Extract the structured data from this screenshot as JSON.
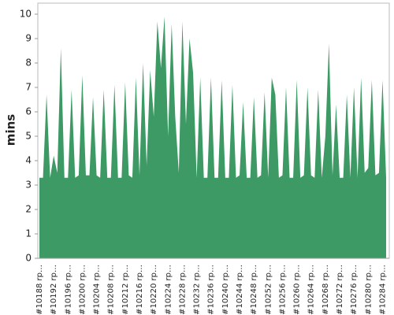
{
  "chart_data": {
    "type": "area",
    "y_label": "mins",
    "color": "#3d9a64",
    "categories": [
      "#10188 rp…",
      null,
      null,
      null,
      "#10192 rp…",
      null,
      null,
      null,
      "#10196 rp…",
      null,
      null,
      null,
      "#10200 rp…",
      null,
      null,
      null,
      "#10204 rp…",
      null,
      null,
      null,
      "#10208 rp…",
      null,
      null,
      null,
      "#10212 rp…",
      null,
      null,
      null,
      "#10216 rp…",
      null,
      null,
      null,
      "#10220 rp…",
      null,
      null,
      null,
      "#10224 rp…",
      null,
      null,
      null,
      "#10228 rp…",
      null,
      null,
      null,
      "#10232 rp…",
      null,
      null,
      null,
      "#10236 rp…",
      null,
      null,
      null,
      "#10240 rp…",
      null,
      null,
      null,
      "#10244 rp…",
      null,
      null,
      null,
      "#10248 rp…",
      null,
      null,
      null,
      "#10252 rp…",
      null,
      null,
      null,
      "#10256 rp…",
      null,
      null,
      null,
      "#10260 rp…",
      null,
      null,
      null,
      "#10264 rp…",
      null,
      null,
      null,
      "#10268 rp…",
      null,
      null,
      null,
      "#10272 rp…",
      null,
      null,
      null,
      "#10276 rp…",
      null,
      null,
      null,
      "#10280 rp…",
      null,
      null,
      null,
      "#10284 rp…",
      null
    ],
    "values": [
      3.3,
      3.3,
      6.7,
      3.3,
      4.2,
      3.5,
      8.6,
      3.3,
      3.3,
      6.9,
      3.3,
      3.4,
      7.5,
      3.4,
      3.4,
      6.6,
      3.4,
      3.3,
      6.9,
      3.3,
      3.3,
      7.1,
      3.3,
      3.3,
      7.2,
      3.4,
      3.3,
      7.4,
      3.4,
      8.0,
      3.8,
      7.7,
      5.8,
      9.7,
      7.8,
      9.9,
      5.0,
      9.6,
      5.8,
      3.5,
      9.7,
      5.5,
      9.0,
      7.6,
      3.3,
      7.4,
      3.3,
      3.3,
      7.4,
      3.3,
      3.3,
      7.3,
      3.3,
      3.3,
      7.1,
      3.3,
      3.4,
      6.4,
      3.3,
      3.3,
      6.6,
      3.3,
      3.4,
      6.8,
      3.3,
      7.4,
      6.7,
      3.3,
      3.4,
      7.0,
      3.3,
      3.3,
      7.3,
      3.3,
      3.4,
      7.0,
      3.4,
      3.3,
      6.9,
      3.3,
      5.0,
      8.8,
      3.4,
      6.3,
      3.3,
      3.3,
      6.7,
      3.3,
      7.0,
      3.3,
      7.4,
      3.5,
      3.7,
      7.3,
      3.4,
      3.5,
      7.3,
      3.3
    ],
    "ylim": [
      0,
      10
    ],
    "yticks": [
      0,
      1,
      2,
      3,
      4,
      5,
      6,
      7,
      8,
      9,
      10
    ]
  }
}
